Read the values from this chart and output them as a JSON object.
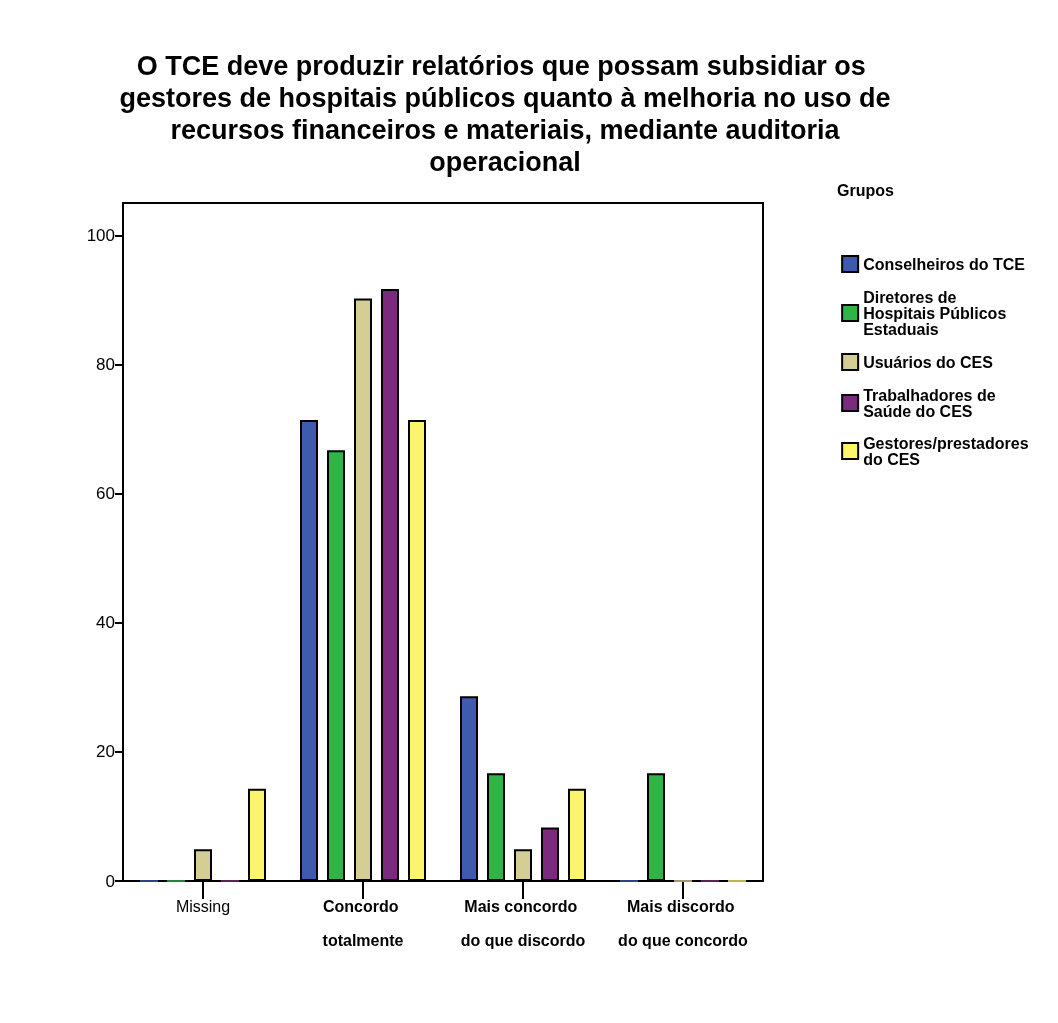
{
  "chart_data": {
    "type": "bar",
    "title": "O TCE deve produzir relatórios que possam subsidiar os gestores de hospitais públicos quanto à melhoria no uso de recursos financeiros e materiais, mediante auditoria operacional",
    "legend_title": "Grupos",
    "categories": [
      "Missing",
      "Concordo totalmente",
      "Mais concordo do que discordo",
      "Mais discordo do que concordo"
    ],
    "series": [
      {
        "name": "Conselheiros do TCE",
        "color": "#3f5bb0",
        "values": [
          0,
          71.4,
          28.6,
          0
        ]
      },
      {
        "name": "Diretores de Hospitais Públicos Estaduais",
        "color": "#2fb546",
        "values": [
          0,
          66.7,
          16.7,
          16.7
        ]
      },
      {
        "name": "Usuários do CES",
        "color": "#d4cd94",
        "values": [
          4.9,
          90.2,
          4.9,
          0
        ]
      },
      {
        "name": "Trabalhadores de Saúde do CES",
        "color": "#7b2a7d",
        "values": [
          0,
          91.7,
          8.3,
          0
        ]
      },
      {
        "name": "Gestores/prestadores do CES",
        "color": "#faf56a",
        "values": [
          14.3,
          71.4,
          14.3,
          0
        ]
      }
    ],
    "ylim": [
      0,
      105
    ],
    "yticks": [
      0,
      20,
      40,
      60,
      80,
      100
    ],
    "grid": false,
    "legend": "right"
  }
}
